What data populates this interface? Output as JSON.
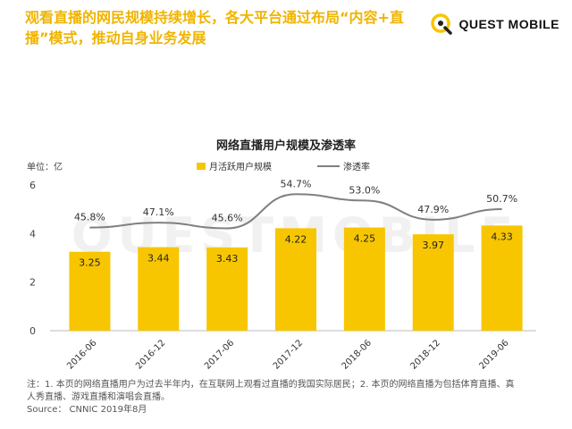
{
  "header": {
    "headline": "观看直播的网民规模持续增长，各大平台通过布局“内容+直播”模式，推动自身业务发展",
    "brand": "QUEST MOBILE"
  },
  "watermark": "QUESTMOBILE",
  "colors": {
    "bar": "#f7c600",
    "line": "#808080",
    "headline": "#f0b400"
  },
  "chart_data": {
    "type": "bar",
    "title": "网络直播用户规模及渗透率",
    "unit_label": "单位：亿",
    "categories": [
      "2016-06",
      "2016-12",
      "2017-06",
      "2017-12",
      "2018-06",
      "2018-12",
      "2019-06"
    ],
    "series": [
      {
        "name": "月活跃用户规模",
        "type": "bar",
        "values": [
          3.25,
          3.44,
          3.43,
          4.22,
          4.25,
          3.97,
          4.33
        ],
        "labels": [
          "3.25",
          "3.44",
          "3.43",
          "4.22",
          "4.25",
          "3.97",
          "4.33"
        ]
      },
      {
        "name": "渗透率",
        "type": "line",
        "values": [
          45.8,
          47.1,
          45.6,
          54.7,
          53.0,
          47.9,
          50.7
        ],
        "labels": [
          "45.8%",
          "47.1%",
          "45.6%",
          "54.7%",
          "53.0%",
          "47.9%",
          "50.7%"
        ]
      }
    ],
    "yticks": [
      "0",
      "2",
      "4",
      "6"
    ],
    "ylim": [
      0,
      6
    ],
    "xlabel": "",
    "ylabel": ""
  },
  "notes": {
    "line1": "注：1. 本页的网络直播用户为过去半年内，在互联网上观看过直播的我国实际居民；2. 本页的网络直播为包括体育直播、真",
    "line2": "人秀直播、游戏直播和演唱会直播。",
    "source": "Source：  CNNIC 2019年8月"
  }
}
